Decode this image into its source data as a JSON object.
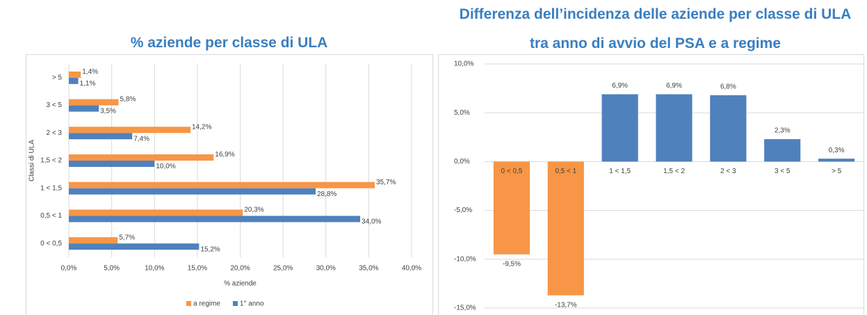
{
  "chart_data": [
    {
      "type": "hbar",
      "title": "% aziende per classe di ULA",
      "x_label": "% aziende",
      "y_label": "Classi di ULA",
      "categories": [
        "0 < 0,5",
        "0,5 < 1",
        "1 < 1,5",
        "1,5 < 2",
        "2 < 3",
        "3 < 5",
        "> 5"
      ],
      "series": [
        {
          "name": "a regime",
          "color": "#f79646",
          "values": [
            5.7,
            20.3,
            35.7,
            16.9,
            14.2,
            5.8,
            1.4
          ],
          "value_labels": [
            "5,7%",
            "20,3%",
            "35,7%",
            "16,9%",
            "14,2%",
            "5,8%",
            "1,4%"
          ]
        },
        {
          "name": "1° anno",
          "color": "#4f81bd",
          "values": [
            15.2,
            34.0,
            28.8,
            10.0,
            7.4,
            3.5,
            1.1
          ],
          "value_labels": [
            "15,2%",
            "34,0%",
            "28,8%",
            "10,0%",
            "7,4%",
            "3,5%",
            "1,1%"
          ]
        }
      ],
      "xlim": [
        0,
        40
      ],
      "xticks": [
        {
          "value": 0,
          "label": "0,0%"
        },
        {
          "value": 5,
          "label": "5,0%"
        },
        {
          "value": 10,
          "label": "10,0%"
        },
        {
          "value": 15,
          "label": "15,0%"
        },
        {
          "value": 20,
          "label": "20,0%"
        },
        {
          "value": 25,
          "label": "25,0%"
        },
        {
          "value": 30,
          "label": "30,0%"
        },
        {
          "value": 35,
          "label": "35,0%"
        },
        {
          "value": 40,
          "label": "40,0%"
        }
      ],
      "grid": true,
      "legend": "bottom"
    },
    {
      "type": "bar",
      "title": "Differenza dell’incidenza delle aziende per classe di ULA tra anno di avvio del PSA e a regime",
      "categories": [
        "0 < 0,5",
        "0,5 < 1",
        "1 < 1,5",
        "1,5 < 2",
        "2 < 3",
        "3 < 5",
        "> 5"
      ],
      "values": [
        -9.5,
        -13.7,
        6.9,
        6.9,
        6.8,
        2.3,
        0.3
      ],
      "value_labels": [
        "-9,5%",
        "-13,7%",
        "6,9%",
        "6,9%",
        "6,8%",
        "2,3%",
        "0,3%"
      ],
      "colors": [
        "#f79646",
        "#f79646",
        "#4f81bd",
        "#4f81bd",
        "#4f81bd",
        "#4f81bd",
        "#4f81bd"
      ],
      "ylim": [
        -15,
        10
      ],
      "yticks": [
        {
          "value": -15,
          "label": "-15,0%"
        },
        {
          "value": -10,
          "label": "-10,0%"
        },
        {
          "value": -5,
          "label": "-5,0%"
        },
        {
          "value": 0,
          "label": "0,0%"
        },
        {
          "value": 5,
          "label": "5,0%"
        },
        {
          "value": 10,
          "label": "10,0%"
        }
      ],
      "grid": true
    }
  ]
}
